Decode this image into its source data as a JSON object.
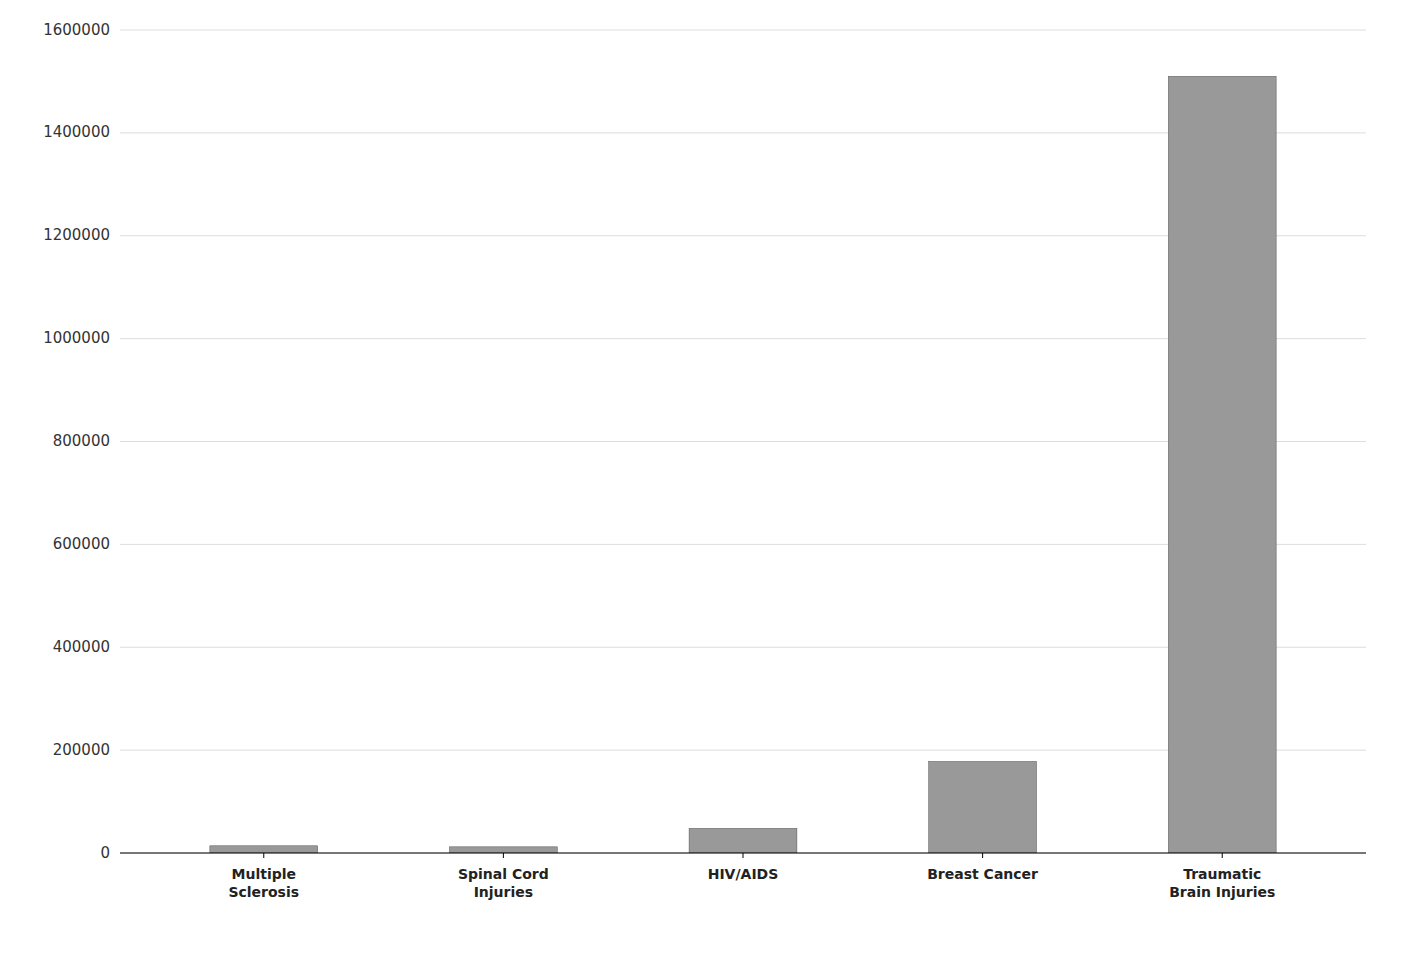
{
  "chart_data": {
    "type": "bar",
    "categories": [
      "Multiple\nSclerosis",
      "Spinal Cord\nInjuries",
      "HIV/AIDS",
      "Breast Cancer",
      "Traumatic\nBrain Injuries"
    ],
    "values": [
      14000,
      12000,
      48000,
      178000,
      1510000
    ],
    "color": "#999999",
    "ylim": [
      0,
      1600000
    ],
    "yticks": [
      0,
      200000,
      400000,
      600000,
      800000,
      1000000,
      1200000,
      1400000,
      1600000
    ],
    "grid": true
  }
}
